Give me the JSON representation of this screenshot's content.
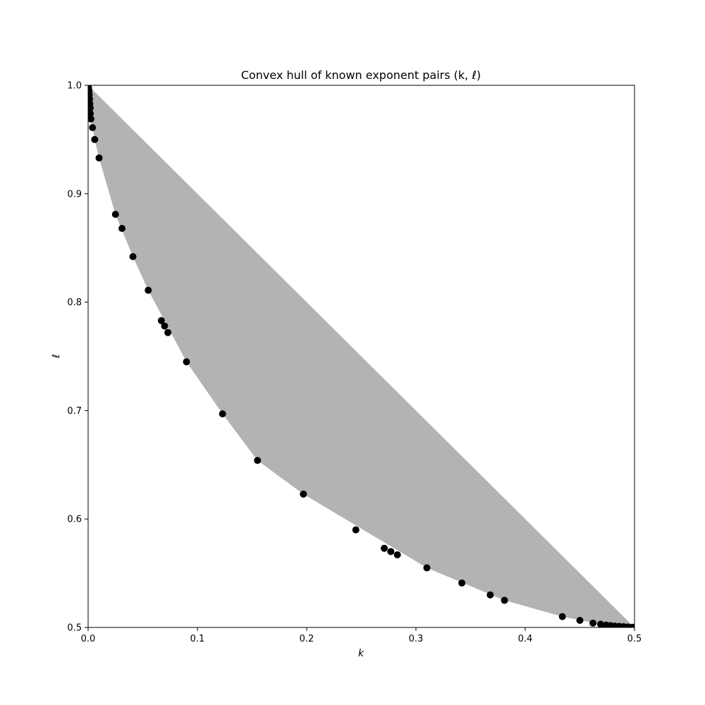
{
  "chart_data": {
    "type": "scatter",
    "title": "Convex hull of known exponent pairs (k, ℓ)",
    "xlabel": "k",
    "ylabel": "ℓ",
    "xlim": [
      0.0,
      0.5
    ],
    "ylim": [
      0.5,
      1.0
    ],
    "grid": false,
    "x_ticks": [
      0.0,
      0.1,
      0.2,
      0.3,
      0.4,
      0.5
    ],
    "y_ticks": [
      0.5,
      0.6,
      0.7,
      0.8,
      0.9,
      1.0
    ],
    "x_tick_labels": [
      "0.0",
      "0.1",
      "0.2",
      "0.3",
      "0.4",
      "0.5"
    ],
    "y_tick_labels": [
      "0.5",
      "0.6",
      "0.7",
      "0.8",
      "0.9",
      "1.0"
    ],
    "hull_color": "#b3b3b3",
    "point_color": "#000000",
    "hull": [
      [
        0.0,
        1.0
      ],
      [
        0.5,
        0.5
      ],
      [
        0.48,
        0.5007
      ],
      [
        0.434,
        0.51
      ],
      [
        0.381,
        0.525
      ],
      [
        0.31,
        0.555
      ],
      [
        0.197,
        0.623
      ],
      [
        0.155,
        0.654
      ],
      [
        0.123,
        0.697
      ],
      [
        0.09,
        0.745
      ],
      [
        0.055,
        0.811
      ],
      [
        0.041,
        0.842
      ],
      [
        0.025,
        0.881
      ],
      [
        0.01,
        0.933
      ],
      [
        0.006,
        0.95
      ],
      [
        0.004,
        0.961
      ],
      [
        0.0025,
        0.969
      ],
      [
        0.0,
        1.0
      ]
    ],
    "points": [
      [
        0.0,
        1.0
      ],
      [
        0.0004,
        0.9975
      ],
      [
        0.0007,
        0.995
      ],
      [
        0.001,
        0.9915
      ],
      [
        0.0013,
        0.9875
      ],
      [
        0.0016,
        0.983
      ],
      [
        0.0019,
        0.979
      ],
      [
        0.002,
        0.974
      ],
      [
        0.0025,
        0.969
      ],
      [
        0.004,
        0.961
      ],
      [
        0.006,
        0.95
      ],
      [
        0.01,
        0.933
      ],
      [
        0.025,
        0.881
      ],
      [
        0.031,
        0.868
      ],
      [
        0.041,
        0.842
      ],
      [
        0.055,
        0.811
      ],
      [
        0.067,
        0.783
      ],
      [
        0.07,
        0.778
      ],
      [
        0.073,
        0.772
      ],
      [
        0.09,
        0.745
      ],
      [
        0.123,
        0.697
      ],
      [
        0.155,
        0.654
      ],
      [
        0.197,
        0.623
      ],
      [
        0.245,
        0.59
      ],
      [
        0.271,
        0.573
      ],
      [
        0.277,
        0.57
      ],
      [
        0.283,
        0.567
      ],
      [
        0.31,
        0.555
      ],
      [
        0.342,
        0.541
      ],
      [
        0.368,
        0.53
      ],
      [
        0.381,
        0.525
      ],
      [
        0.434,
        0.51
      ],
      [
        0.45,
        0.5065
      ],
      [
        0.462,
        0.504
      ],
      [
        0.469,
        0.503
      ],
      [
        0.474,
        0.5022
      ],
      [
        0.478,
        0.5017
      ],
      [
        0.482,
        0.5013
      ],
      [
        0.486,
        0.501
      ],
      [
        0.49,
        0.5007
      ],
      [
        0.494,
        0.5004
      ],
      [
        0.498,
        0.5002
      ],
      [
        0.5,
        0.5
      ]
    ]
  }
}
